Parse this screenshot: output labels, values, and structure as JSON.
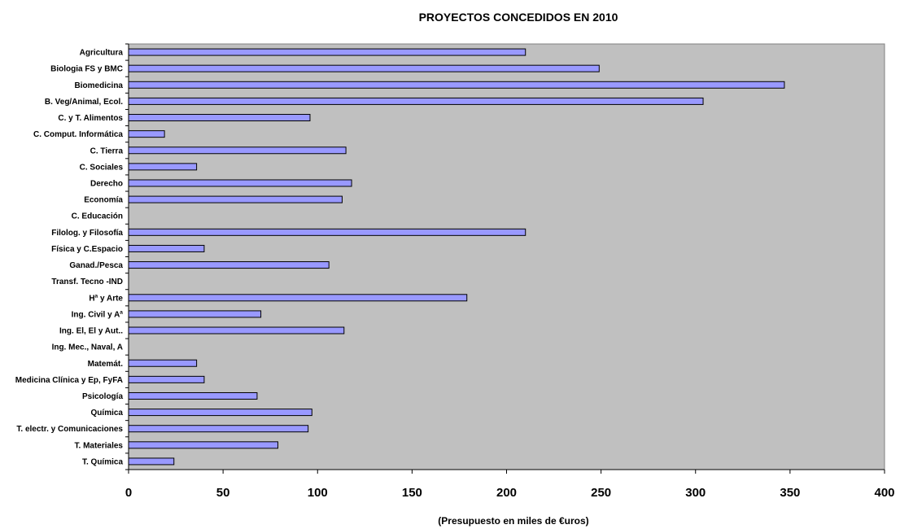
{
  "chart_data": {
    "type": "bar",
    "orientation": "horizontal",
    "title": "PROYECTOS CONCEDIDOS EN 2010",
    "xlabel": "(Presupuesto en miles de €uros)",
    "ylabel": "",
    "xlim": [
      0,
      400
    ],
    "x_ticks": [
      0,
      50,
      100,
      150,
      200,
      250,
      300,
      350,
      400
    ],
    "grid": false,
    "legend": "none",
    "colors": {
      "bar_fill": "#9999ff",
      "bar_stroke": "#000000",
      "plot_bg": "#c0c0c0"
    },
    "categories": [
      "Agricultura",
      "Biologia FS y BMC",
      "Biomedicina",
      "B. Veg/Animal, Ecol.",
      "C. y T. Alimentos",
      "C. Comput. Informática",
      "C. Tierra",
      "C. Sociales",
      "Derecho",
      "Economía",
      "C. Educación",
      "Filolog. y Filosofía",
      "Física y C.Espacio",
      "Ganad./Pesca",
      "Transf. Tecno -IND",
      "Hª y Arte",
      "Ing. Civil y Aª",
      "Ing. El, El y Aut..",
      "Ing. Mec., Naval, A",
      "Matemát.",
      "Medicina Clínica y Ep, FyFA",
      "Psicología",
      "Química",
      "T. electr. y Comunicaciones",
      "T. Materiales",
      "T. Química"
    ],
    "values": [
      210,
      249,
      347,
      304,
      96,
      19,
      115,
      36,
      118,
      113,
      0,
      210,
      40,
      106,
      0,
      179,
      70,
      114,
      0,
      36,
      40,
      68,
      97,
      95,
      79,
      24
    ]
  }
}
